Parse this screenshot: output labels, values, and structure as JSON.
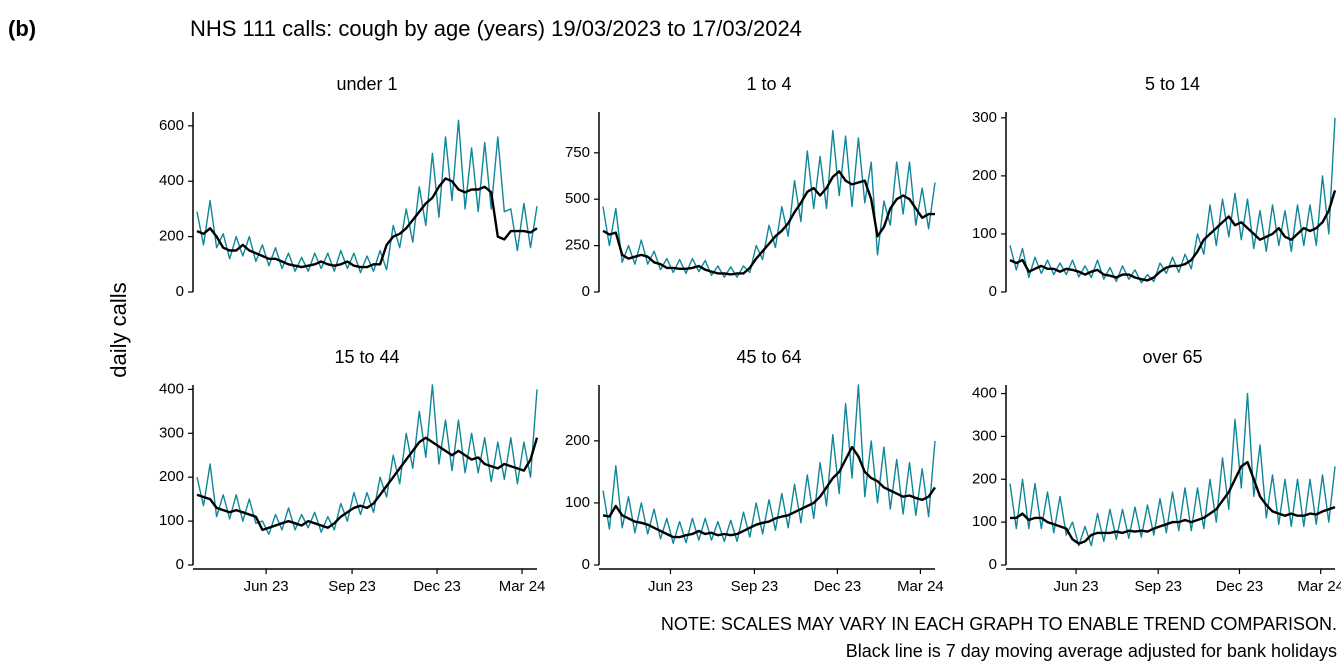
{
  "panel_label": "(b)",
  "title": "NHS 111 calls: cough by age (years) 19/03/2023 to 17/03/2024",
  "y_label": "daily calls",
  "notes": [
    "NOTE: SCALES MAY VARY IN EACH GRAPH TO ENABLE TREND COMPARISON.",
    "Black line is 7 day moving average adjusted for bank holidays"
  ],
  "chart_data": [
    {
      "type": "line",
      "title": "under 1",
      "x": [
        0,
        7,
        14,
        21,
        28,
        35,
        42,
        49,
        56,
        63,
        70,
        77,
        84,
        91,
        98,
        105,
        112,
        119,
        126,
        133,
        140,
        147,
        154,
        161,
        168,
        175,
        182,
        189,
        196,
        203,
        210,
        217,
        224,
        231,
        238,
        245,
        252,
        259,
        266,
        273,
        280,
        287,
        294,
        301,
        308,
        315,
        322,
        329,
        336,
        343,
        350,
        357,
        364
      ],
      "xlim": [
        0,
        364
      ],
      "ylim": [
        0,
        650
      ],
      "yticks": [
        0,
        200,
        400,
        600
      ],
      "series": [
        {
          "color": "#0f8799",
          "values": [
            290,
            170,
            330,
            160,
            210,
            120,
            200,
            130,
            200,
            110,
            170,
            95,
            160,
            85,
            140,
            75,
            125,
            75,
            140,
            85,
            140,
            75,
            150,
            85,
            140,
            70,
            130,
            75,
            150,
            80,
            240,
            160,
            300,
            180,
            380,
            240,
            500,
            270,
            560,
            330,
            620,
            300,
            520,
            290,
            540,
            300,
            560,
            290,
            300,
            150,
            320,
            160,
            310
          ]
        },
        {
          "color": "#000000",
          "values": [
            220,
            210,
            230,
            200,
            160,
            150,
            150,
            170,
            150,
            140,
            130,
            120,
            120,
            110,
            100,
            95,
            90,
            95,
            100,
            110,
            100,
            95,
            100,
            110,
            95,
            90,
            90,
            100,
            100,
            170,
            200,
            210,
            230,
            260,
            290,
            320,
            340,
            380,
            410,
            400,
            370,
            360,
            370,
            370,
            380,
            360,
            200,
            190,
            220,
            220,
            220,
            215,
            230
          ]
        }
      ]
    },
    {
      "type": "line",
      "title": "1 to 4",
      "x": [
        0,
        7,
        14,
        21,
        28,
        35,
        42,
        49,
        56,
        63,
        70,
        77,
        84,
        91,
        98,
        105,
        112,
        119,
        126,
        133,
        140,
        147,
        154,
        161,
        168,
        175,
        182,
        189,
        196,
        203,
        210,
        217,
        224,
        231,
        238,
        245,
        252,
        259,
        266,
        273,
        280,
        287,
        294,
        301,
        308,
        315,
        322,
        329,
        336,
        343,
        350,
        357,
        364
      ],
      "xlim": [
        0,
        364
      ],
      "ylim": [
        0,
        970
      ],
      "yticks": [
        0,
        250,
        500,
        750
      ],
      "series": [
        {
          "color": "#0f8799",
          "values": [
            460,
            250,
            450,
            160,
            250,
            150,
            280,
            150,
            220,
            120,
            180,
            105,
            175,
            100,
            180,
            110,
            170,
            90,
            140,
            80,
            135,
            80,
            140,
            105,
            250,
            175,
            360,
            240,
            460,
            300,
            600,
            380,
            760,
            450,
            730,
            450,
            870,
            520,
            840,
            460,
            830,
            480,
            700,
            200,
            490,
            360,
            700,
            420,
            700,
            360,
            560,
            340,
            590
          ]
        },
        {
          "color": "#000000",
          "values": [
            330,
            310,
            320,
            200,
            180,
            190,
            200,
            190,
            160,
            150,
            130,
            130,
            125,
            125,
            130,
            140,
            120,
            110,
            100,
            100,
            95,
            100,
            100,
            130,
            180,
            220,
            260,
            300,
            330,
            370,
            430,
            480,
            540,
            560,
            520,
            560,
            620,
            650,
            600,
            580,
            590,
            600,
            500,
            300,
            350,
            450,
            500,
            520,
            500,
            450,
            400,
            420,
            420
          ]
        }
      ]
    },
    {
      "type": "line",
      "title": "5 to 14",
      "x": [
        0,
        7,
        14,
        21,
        28,
        35,
        42,
        49,
        56,
        63,
        70,
        77,
        84,
        91,
        98,
        105,
        112,
        119,
        126,
        133,
        140,
        147,
        154,
        161,
        168,
        175,
        182,
        189,
        196,
        203,
        210,
        217,
        224,
        231,
        238,
        245,
        252,
        259,
        266,
        273,
        280,
        287,
        294,
        301,
        308,
        315,
        322,
        329,
        336,
        343,
        350,
        357,
        364
      ],
      "xlim": [
        0,
        364
      ],
      "ylim": [
        0,
        310
      ],
      "yticks": [
        0,
        100,
        200,
        300
      ],
      "series": [
        {
          "color": "#0f8799",
          "values": [
            80,
            38,
            75,
            25,
            60,
            32,
            55,
            30,
            50,
            30,
            55,
            26,
            45,
            25,
            55,
            22,
            42,
            18,
            45,
            22,
            38,
            16,
            30,
            18,
            50,
            32,
            60,
            34,
            65,
            40,
            100,
            65,
            150,
            80,
            160,
            95,
            170,
            90,
            160,
            75,
            140,
            70,
            150,
            80,
            140,
            70,
            150,
            80,
            150,
            80,
            200,
            100,
            300
          ]
        },
        {
          "color": "#000000",
          "values": [
            55,
            50,
            55,
            35,
            40,
            45,
            40,
            40,
            35,
            40,
            38,
            35,
            30,
            35,
            38,
            30,
            28,
            25,
            30,
            30,
            25,
            22,
            20,
            25,
            35,
            42,
            45,
            45,
            48,
            55,
            70,
            90,
            100,
            110,
            120,
            130,
            115,
            120,
            110,
            100,
            90,
            95,
            100,
            110,
            95,
            90,
            100,
            110,
            105,
            110,
            120,
            140,
            175
          ]
        }
      ]
    },
    {
      "type": "line",
      "title": "15 to 44",
      "x": [
        0,
        7,
        14,
        21,
        28,
        35,
        42,
        49,
        56,
        63,
        70,
        77,
        84,
        91,
        98,
        105,
        112,
        119,
        126,
        133,
        140,
        147,
        154,
        161,
        168,
        175,
        182,
        189,
        196,
        203,
        210,
        217,
        224,
        231,
        238,
        245,
        252,
        259,
        266,
        273,
        280,
        287,
        294,
        301,
        308,
        315,
        322,
        329,
        336,
        343,
        350,
        357,
        364
      ],
      "xlim": [
        0,
        364
      ],
      "ylim": [
        0,
        410
      ],
      "yticks": [
        0,
        100,
        200,
        300,
        400
      ],
      "xticks": [
        {
          "value": 74,
          "label": "Jun 23"
        },
        {
          "value": 166,
          "label": "Sep 23"
        },
        {
          "value": 257,
          "label": "Dec 23"
        },
        {
          "value": 348,
          "label": "Mar 24"
        }
      ],
      "series": [
        {
          "color": "#0f8799",
          "values": [
            200,
            135,
            230,
            110,
            160,
            105,
            160,
            100,
            150,
            95,
            100,
            70,
            115,
            80,
            130,
            80,
            115,
            85,
            120,
            75,
            110,
            80,
            140,
            100,
            165,
            115,
            165,
            120,
            200,
            155,
            250,
            185,
            300,
            220,
            350,
            245,
            410,
            230,
            330,
            215,
            330,
            210,
            300,
            210,
            290,
            190,
            280,
            195,
            290,
            185,
            280,
            200,
            400
          ]
        },
        {
          "color": "#000000",
          "values": [
            160,
            155,
            150,
            130,
            125,
            120,
            125,
            120,
            115,
            110,
            80,
            85,
            90,
            95,
            100,
            95,
            90,
            100,
            95,
            90,
            85,
            95,
            110,
            120,
            130,
            135,
            130,
            140,
            160,
            180,
            200,
            220,
            240,
            260,
            280,
            290,
            280,
            270,
            260,
            250,
            260,
            250,
            240,
            245,
            230,
            225,
            220,
            230,
            225,
            220,
            215,
            240,
            290
          ]
        }
      ]
    },
    {
      "type": "line",
      "title": "45 to 64",
      "x": [
        0,
        7,
        14,
        21,
        28,
        35,
        42,
        49,
        56,
        63,
        70,
        77,
        84,
        91,
        98,
        105,
        112,
        119,
        126,
        133,
        140,
        147,
        154,
        161,
        168,
        175,
        182,
        189,
        196,
        203,
        210,
        217,
        224,
        231,
        238,
        245,
        252,
        259,
        266,
        273,
        280,
        287,
        294,
        301,
        308,
        315,
        322,
        329,
        336,
        343,
        350,
        357,
        364
      ],
      "xlim": [
        0,
        364
      ],
      "ylim": [
        0,
        290
      ],
      "yticks": [
        0,
        100,
        200
      ],
      "xticks": [
        {
          "value": 74,
          "label": "Jun 23"
        },
        {
          "value": 166,
          "label": "Sep 23"
        },
        {
          "value": 257,
          "label": "Dec 23"
        },
        {
          "value": 348,
          "label": "Mar 24"
        }
      ],
      "series": [
        {
          "color": "#0f8799",
          "values": [
            120,
            58,
            160,
            60,
            110,
            52,
            100,
            50,
            90,
            42,
            75,
            35,
            70,
            36,
            75,
            40,
            75,
            40,
            70,
            38,
            72,
            38,
            85,
            45,
            100,
            50,
            105,
            56,
            115,
            60,
            130,
            68,
            145,
            75,
            165,
            95,
            210,
            115,
            260,
            140,
            290,
            110,
            200,
            100,
            190,
            90,
            170,
            82,
            165,
            80,
            155,
            78,
            200
          ]
        },
        {
          "color": "#000000",
          "values": [
            80,
            78,
            95,
            80,
            75,
            70,
            68,
            65,
            60,
            55,
            50,
            45,
            45,
            48,
            50,
            55,
            50,
            52,
            48,
            50,
            48,
            50,
            55,
            60,
            65,
            68,
            70,
            75,
            78,
            80,
            85,
            90,
            95,
            100,
            110,
            125,
            140,
            150,
            170,
            190,
            175,
            150,
            140,
            135,
            125,
            120,
            115,
            110,
            112,
            108,
            105,
            110,
            125
          ]
        }
      ]
    },
    {
      "type": "line",
      "title": "over 65",
      "x": [
        0,
        7,
        14,
        21,
        28,
        35,
        42,
        49,
        56,
        63,
        70,
        77,
        84,
        91,
        98,
        105,
        112,
        119,
        126,
        133,
        140,
        147,
        154,
        161,
        168,
        175,
        182,
        189,
        196,
        203,
        210,
        217,
        224,
        231,
        238,
        245,
        252,
        259,
        266,
        273,
        280,
        287,
        294,
        301,
        308,
        315,
        322,
        329,
        336,
        343,
        350,
        357,
        364
      ],
      "xlim": [
        0,
        364
      ],
      "ylim": [
        0,
        420
      ],
      "yticks": [
        0,
        100,
        200,
        300,
        400
      ],
      "xticks": [
        {
          "value": 74,
          "label": "Jun 23"
        },
        {
          "value": 166,
          "label": "Sep 23"
        },
        {
          "value": 257,
          "label": "Dec 23"
        },
        {
          "value": 348,
          "label": "Mar 24"
        }
      ],
      "series": [
        {
          "color": "#0f8799",
          "values": [
            190,
            85,
            200,
            85,
            190,
            85,
            170,
            75,
            160,
            70,
            100,
            45,
            90,
            45,
            120,
            55,
            130,
            60,
            130,
            62,
            135,
            65,
            140,
            70,
            155,
            75,
            170,
            80,
            180,
            80,
            180,
            85,
            200,
            100,
            250,
            130,
            340,
            180,
            400,
            160,
            280,
            110,
            210,
            95,
            200,
            90,
            200,
            90,
            200,
            95,
            210,
            100,
            230
          ]
        },
        {
          "color": "#000000",
          "values": [
            110,
            110,
            120,
            105,
            110,
            110,
            100,
            95,
            90,
            85,
            60,
            50,
            55,
            70,
            75,
            75,
            75,
            78,
            75,
            80,
            78,
            80,
            78,
            85,
            90,
            95,
            100,
            100,
            105,
            100,
            105,
            110,
            120,
            130,
            150,
            170,
            200,
            230,
            240,
            200,
            160,
            140,
            125,
            120,
            115,
            120,
            115,
            115,
            120,
            118,
            125,
            130,
            135
          ]
        }
      ]
    }
  ]
}
